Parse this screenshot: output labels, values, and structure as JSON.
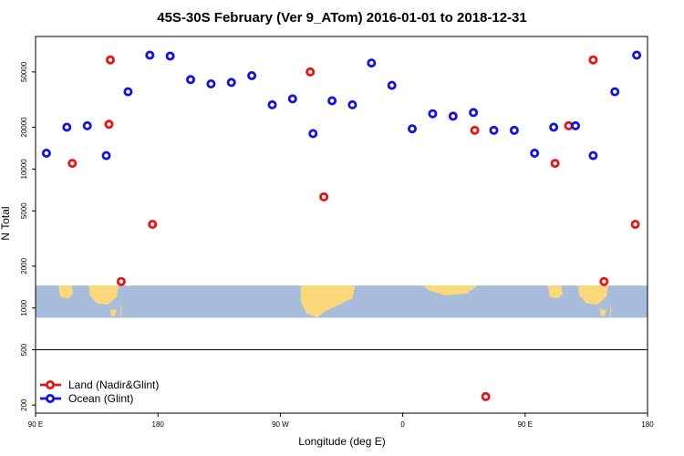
{
  "chart_data": {
    "type": "scatter",
    "title": "45S-30S February (Ver 9_ATom)   2016-01-01 to 2018-12-31",
    "xlabel": "Longitude (deg E)",
    "ylabel": "N Total",
    "x_scale": "linear",
    "y_scale": "log",
    "xlim": [
      90,
      540
    ],
    "ylim": [
      175,
      90000
    ],
    "x_ticks": [
      {
        "value": 90,
        "label": "90 E"
      },
      {
        "value": 180,
        "label": "180"
      },
      {
        "value": 270,
        "label": "90 W"
      },
      {
        "value": 360,
        "label": "0"
      },
      {
        "value": 450,
        "label": "90 E"
      },
      {
        "value": 540,
        "label": "180"
      }
    ],
    "y_ticks": [
      {
        "value": 200,
        "label": "200"
      },
      {
        "value": 500,
        "label": "500"
      },
      {
        "value": 1000,
        "label": "1000"
      },
      {
        "value": 2000,
        "label": "2000"
      },
      {
        "value": 5000,
        "label": "5000"
      },
      {
        "value": 10000,
        "label": "10000"
      },
      {
        "value": 20000,
        "label": "20000"
      },
      {
        "value": 50000,
        "label": "50000"
      }
    ],
    "separator_y": 500,
    "map_band": {
      "y_top": 1450,
      "y_bottom": 850,
      "ocean_color": "#a8bcdc",
      "land_color": "#fbd879"
    },
    "legend": {
      "position": "bottom-left"
    },
    "series": [
      {
        "name": "Land (Nadir&Glint)",
        "color": "#ee1111",
        "points": [
          [
            117,
            11000
          ],
          [
            144,
            21000
          ],
          [
            145,
            61000
          ],
          [
            153,
            1550
          ],
          [
            176,
            4000
          ],
          [
            292,
            50000
          ],
          [
            302,
            6300
          ],
          [
            413,
            19000
          ],
          [
            421,
            230
          ],
          [
            472,
            11000
          ],
          [
            482,
            20500
          ],
          [
            500,
            61000
          ],
          [
            508,
            1550
          ],
          [
            531,
            4000
          ]
        ]
      },
      {
        "name": "Ocean (Glint)",
        "color": "#1111ee",
        "points": [
          [
            98,
            13000
          ],
          [
            113,
            20000
          ],
          [
            128,
            20500
          ],
          [
            142,
            12500
          ],
          [
            158,
            36000
          ],
          [
            174,
            66000
          ],
          [
            189,
            65000
          ],
          [
            204,
            44000
          ],
          [
            219,
            41000
          ],
          [
            234,
            42000
          ],
          [
            249,
            47000
          ],
          [
            264,
            29000
          ],
          [
            279,
            32000
          ],
          [
            294,
            18000
          ],
          [
            308,
            31000
          ],
          [
            323,
            29000
          ],
          [
            337,
            58000
          ],
          [
            352,
            40000
          ],
          [
            367,
            19500
          ],
          [
            382,
            25000
          ],
          [
            397,
            24000
          ],
          [
            412,
            25500
          ],
          [
            427,
            19000
          ],
          [
            442,
            19000
          ],
          [
            457,
            13000
          ],
          [
            471,
            20000
          ],
          [
            487,
            20500
          ],
          [
            500,
            12500
          ],
          [
            516,
            36000
          ],
          [
            532,
            66000
          ]
        ]
      }
    ]
  }
}
